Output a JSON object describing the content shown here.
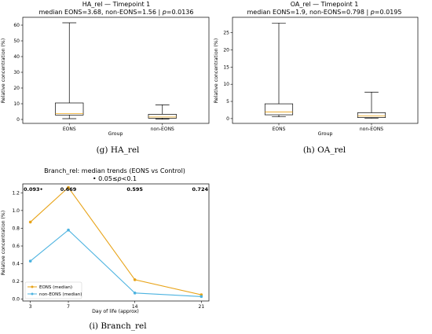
{
  "chart_data": [
    {
      "type": "box",
      "title": "HA_rel — Timepoint 1",
      "subtitle": "median EONS=3.68, non-EONS=1.56 | p=0.0136",
      "stat_prefix": "median EONS=3.68, non-EONS=1.56 | ",
      "p_symbol": "p",
      "p_value": "=0.0136",
      "xlabel": "Group",
      "ylabel": "Relative concentration (%)",
      "ylim": [
        -2.5,
        65
      ],
      "yticks": [
        0,
        10,
        20,
        30,
        40,
        50,
        60
      ],
      "categories": [
        "EONS",
        "non-EONS"
      ],
      "boxes": [
        {
          "name": "EONS",
          "whisker_low": 0.5,
          "q1": 2.8,
          "median": 3.68,
          "q3": 10.5,
          "whisker_high": 61.5
        },
        {
          "name": "non-EONS",
          "whisker_low": 0.2,
          "q1": 0.8,
          "median": 1.56,
          "q3": 3.3,
          "whisker_high": 9.3
        }
      ],
      "caption_letter": "(g)",
      "caption_text": "HA_rel"
    },
    {
      "type": "box",
      "title": "OA_rel — Timepoint 1",
      "subtitle": "median EONS=1.9, non-EONS=0.798 | p=0.0195",
      "stat_prefix": "median EONS=1.9, non-EONS=0.798 | ",
      "p_symbol": "p",
      "p_value": "=0.0195",
      "xlabel": "Group",
      "ylabel": "Relative concentration (%)",
      "ylim": [
        -1.4,
        29.5
      ],
      "yticks": [
        0,
        5,
        10,
        15,
        20,
        25
      ],
      "categories": [
        "EONS",
        "non-EONS"
      ],
      "boxes": [
        {
          "name": "EONS",
          "whisker_low": 0.5,
          "q1": 1.1,
          "median": 1.9,
          "q3": 4.3,
          "whisker_high": 27.8
        },
        {
          "name": "non-EONS",
          "whisker_low": 0.1,
          "q1": 0.3,
          "median": 0.798,
          "q3": 1.7,
          "whisker_high": 7.7
        }
      ],
      "caption_letter": "(h)",
      "caption_text": "OA_rel"
    },
    {
      "type": "line",
      "title": "Branch_rel: median trends (EONS vs Control)",
      "subtitle": "• 0.05≤p<0.1",
      "legend_key_prefix": "• 0.05≤",
      "legend_key_p": "p",
      "legend_key_suffix": "<0.1",
      "xlabel": "Day of life (approx)",
      "ylabel": "Relative concentration (%)",
      "x": [
        3,
        7,
        14,
        21
      ],
      "xlim": [
        2.2,
        21.8
      ],
      "ylim": [
        -0.02,
        1.3
      ],
      "yticks": [
        0.0,
        0.2,
        0.4,
        0.6,
        0.8,
        1.0,
        1.2
      ],
      "yticklabels": [
        "0.0",
        "0.2",
        "0.4",
        "0.6",
        "0.8",
        "1.0",
        "1.2"
      ],
      "series": [
        {
          "name": "EONS (median)",
          "values": [
            0.87,
            1.26,
            0.22,
            0.05
          ],
          "color": "#E8A317"
        },
        {
          "name": "non-EONS (median)",
          "values": [
            0.43,
            0.78,
            0.07,
            0.03
          ],
          "color": "#4DB3E0"
        }
      ],
      "p_annotations": [
        "0.093•",
        "0.669",
        "0.595",
        "0.724"
      ],
      "legend_position": "lower-left",
      "caption_letter": "(i)",
      "caption_text": "Branch_rel"
    }
  ]
}
